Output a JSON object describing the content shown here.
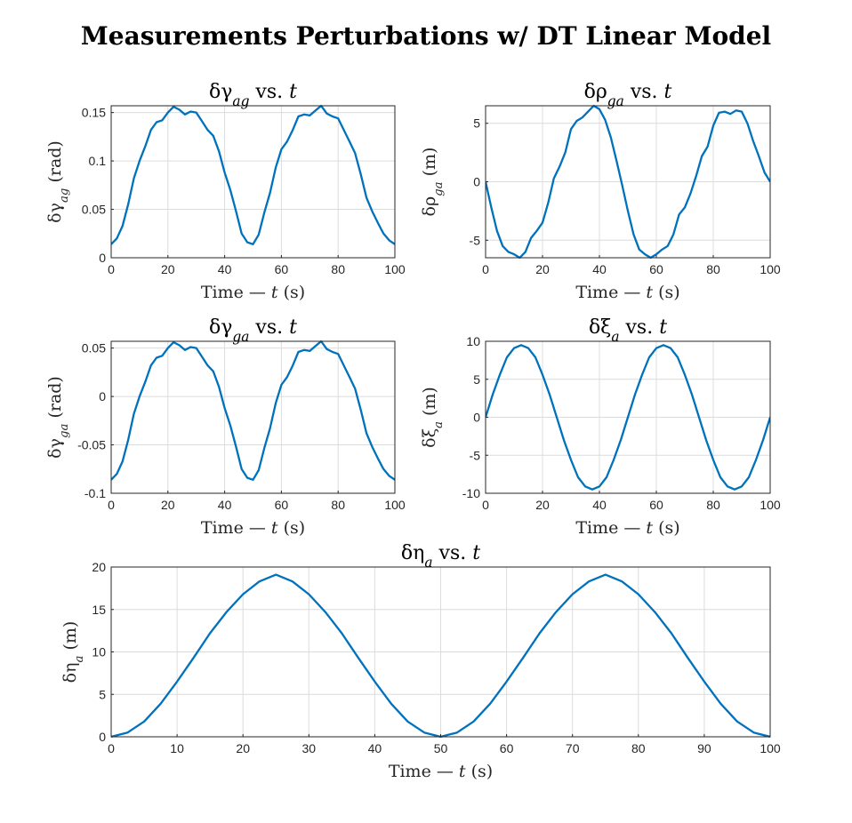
{
  "figure": {
    "title": "Measurements Perturbations w/ DT Linear Model"
  },
  "colors": {
    "line": "#0072bd",
    "grid": "#dcdcdc",
    "axis": "#262626"
  },
  "chart_data": [
    {
      "type": "line",
      "title": "δγ_ag vs. t",
      "title_plain": "δγag vs. t",
      "xlabel": "Time — t (s)",
      "ylabel": "δγ_ag (rad)",
      "xlim": [
        0,
        100
      ],
      "ylim": [
        0,
        0.157
      ],
      "xticks": [
        0,
        20,
        40,
        60,
        80,
        100
      ],
      "yticks": [
        0,
        0.05,
        0.1,
        0.15
      ],
      "ytick_labels": [
        "0",
        "0.05",
        "0.1",
        "0.15"
      ],
      "grid": true,
      "x": [
        0,
        2,
        4,
        6,
        8,
        10,
        12,
        14,
        16,
        18,
        20,
        22,
        24,
        26,
        28,
        30,
        32,
        34,
        36,
        38,
        40,
        42,
        44,
        46,
        48,
        50,
        52,
        54,
        56,
        58,
        60,
        62,
        64,
        66,
        68,
        70,
        72,
        74,
        76,
        78,
        80,
        82,
        84,
        86,
        88,
        90,
        92,
        94,
        96,
        98,
        100
      ],
      "y": [
        0.014,
        0.02,
        0.033,
        0.055,
        0.082,
        0.1,
        0.115,
        0.132,
        0.14,
        0.142,
        0.15,
        0.156,
        0.153,
        0.148,
        0.151,
        0.15,
        0.141,
        0.132,
        0.126,
        0.11,
        0.088,
        0.07,
        0.048,
        0.025,
        0.016,
        0.014,
        0.024,
        0.047,
        0.067,
        0.093,
        0.112,
        0.12,
        0.132,
        0.146,
        0.148,
        0.147,
        0.152,
        0.157,
        0.149,
        0.146,
        0.144,
        0.132,
        0.12,
        0.108,
        0.086,
        0.062,
        0.048,
        0.036,
        0.025,
        0.018,
        0.014
      ]
    },
    {
      "type": "line",
      "title": "δρ_ga vs. t",
      "title_plain": "δρga vs. t",
      "xlabel": "Time — t (s)",
      "ylabel": "δρ_ga (m)",
      "xlim": [
        0,
        100
      ],
      "ylim": [
        -6.5,
        6.5
      ],
      "xticks": [
        0,
        20,
        40,
        60,
        80,
        100
      ],
      "yticks": [
        -5,
        0,
        5
      ],
      "ytick_labels": [
        "-5",
        "0",
        "5"
      ],
      "grid": true,
      "x": [
        0,
        2,
        4,
        6,
        8,
        10,
        12,
        14,
        16,
        18,
        20,
        22,
        24,
        26,
        28,
        30,
        32,
        34,
        36,
        38,
        40,
        42,
        44,
        46,
        48,
        50,
        52,
        54,
        56,
        58,
        60,
        62,
        64,
        66,
        68,
        70,
        72,
        74,
        76,
        78,
        80,
        82,
        84,
        86,
        88,
        90,
        92,
        94,
        96,
        98,
        100
      ],
      "y": [
        0,
        -2.2,
        -4.2,
        -5.5,
        -6,
        -6.2,
        -6.5,
        -6,
        -4.8,
        -4.2,
        -3.5,
        -1.8,
        0.3,
        1.3,
        2.5,
        4.5,
        5.2,
        5.5,
        6,
        6.5,
        6.2,
        5.3,
        3.8,
        1.8,
        -0.3,
        -2.5,
        -4.5,
        -5.8,
        -6.2,
        -6.5,
        -6.2,
        -5.8,
        -5.5,
        -4.5,
        -2.8,
        -2.2,
        -1,
        0.5,
        2.2,
        3,
        4.8,
        5.9,
        6,
        5.8,
        6.1,
        6,
        5,
        3.5,
        2.2,
        0.8,
        0
      ]
    },
    {
      "type": "line",
      "title": "δγ_ga vs. t",
      "title_plain": "δγga vs. t",
      "xlabel": "Time — t (s)",
      "ylabel": "δγ_ga (rad)",
      "xlim": [
        0,
        100
      ],
      "ylim": [
        -0.1,
        0.057
      ],
      "xticks": [
        0,
        20,
        40,
        60,
        80,
        100
      ],
      "yticks": [
        -0.1,
        -0.05,
        0,
        0.05
      ],
      "ytick_labels": [
        "-0.1",
        "-0.05",
        "0",
        "0.05"
      ],
      "grid": true,
      "x": [
        0,
        2,
        4,
        6,
        8,
        10,
        12,
        14,
        16,
        18,
        20,
        22,
        24,
        26,
        28,
        30,
        32,
        34,
        36,
        38,
        40,
        42,
        44,
        46,
        48,
        50,
        52,
        54,
        56,
        58,
        60,
        62,
        64,
        66,
        68,
        70,
        72,
        74,
        76,
        78,
        80,
        82,
        84,
        86,
        88,
        90,
        92,
        94,
        96,
        98,
        100
      ],
      "y": [
        -0.086,
        -0.08,
        -0.067,
        -0.045,
        -0.018,
        0,
        0.015,
        0.032,
        0.04,
        0.042,
        0.05,
        0.056,
        0.053,
        0.048,
        0.051,
        0.05,
        0.041,
        0.032,
        0.026,
        0.01,
        -0.012,
        -0.03,
        -0.052,
        -0.075,
        -0.084,
        -0.086,
        -0.076,
        -0.053,
        -0.033,
        -0.007,
        0.012,
        0.02,
        0.032,
        0.046,
        0.048,
        0.047,
        0.052,
        0.057,
        0.049,
        0.046,
        0.044,
        0.032,
        0.02,
        0.008,
        -0.014,
        -0.038,
        -0.052,
        -0.064,
        -0.075,
        -0.082,
        -0.086
      ]
    },
    {
      "type": "line",
      "title": "δξ_a vs. t",
      "title_plain": "δξa vs. t",
      "xlabel": "Time — t (s)",
      "ylabel": "δξ_a (m)",
      "xlim": [
        0,
        100
      ],
      "ylim": [
        -10,
        10
      ],
      "xticks": [
        0,
        20,
        40,
        60,
        80,
        100
      ],
      "yticks": [
        -10,
        -5,
        0,
        5,
        10
      ],
      "ytick_labels": [
        "-10",
        "-5",
        "0",
        "5",
        "10"
      ],
      "grid": true,
      "x": [
        0,
        2.5,
        5,
        7.5,
        10,
        12.5,
        15,
        17.5,
        20,
        22.5,
        25,
        27.5,
        30,
        32.5,
        35,
        37.5,
        40,
        42.5,
        45,
        47.5,
        50,
        52.5,
        55,
        57.5,
        60,
        62.5,
        65,
        67.5,
        70,
        72.5,
        75,
        77.5,
        80,
        82.5,
        85,
        87.5,
        90,
        92.5,
        95,
        97.5,
        100
      ],
      "y": [
        0,
        3,
        5.6,
        7.9,
        9.1,
        9.5,
        9.1,
        7.9,
        5.6,
        3,
        0,
        -3,
        -5.6,
        -7.9,
        -9.1,
        -9.5,
        -9.1,
        -7.9,
        -5.6,
        -3,
        0,
        3,
        5.6,
        7.9,
        9.1,
        9.5,
        9.1,
        7.9,
        5.6,
        3,
        0,
        -3,
        -5.6,
        -7.9,
        -9.1,
        -9.5,
        -9.1,
        -7.9,
        -5.6,
        -3,
        0
      ]
    },
    {
      "type": "line",
      "title": "δη_a vs. t",
      "title_plain": "δηa vs. t",
      "xlabel": "Time — t (s)",
      "ylabel": "δη_a (m)",
      "xlim": [
        0,
        100
      ],
      "ylim": [
        0,
        20
      ],
      "xticks": [
        0,
        10,
        20,
        30,
        40,
        50,
        60,
        70,
        80,
        90,
        100
      ],
      "yticks": [
        0,
        5,
        10,
        15,
        20
      ],
      "ytick_labels": [
        "0",
        "5",
        "10",
        "15",
        "20"
      ],
      "grid": true,
      "x": [
        0,
        2.5,
        5,
        7.5,
        10,
        12.5,
        15,
        17.5,
        20,
        22.5,
        25,
        27.5,
        30,
        32.5,
        35,
        37.5,
        40,
        42.5,
        45,
        47.5,
        50,
        52.5,
        55,
        57.5,
        60,
        62.5,
        65,
        67.5,
        70,
        72.5,
        75,
        77.5,
        80,
        82.5,
        85,
        87.5,
        90,
        92.5,
        95,
        97.5,
        100
      ],
      "y": [
        0,
        0.5,
        1.8,
        3.9,
        6.5,
        9.3,
        12.2,
        14.7,
        16.8,
        18.3,
        19.1,
        18.3,
        16.8,
        14.7,
        12.2,
        9.3,
        6.5,
        3.9,
        1.8,
        0.5,
        0,
        0.5,
        1.8,
        3.9,
        6.5,
        9.3,
        12.2,
        14.7,
        16.8,
        18.3,
        19.1,
        18.3,
        16.8,
        14.7,
        12.2,
        9.3,
        6.5,
        3.9,
        1.8,
        0.5,
        0
      ]
    }
  ]
}
